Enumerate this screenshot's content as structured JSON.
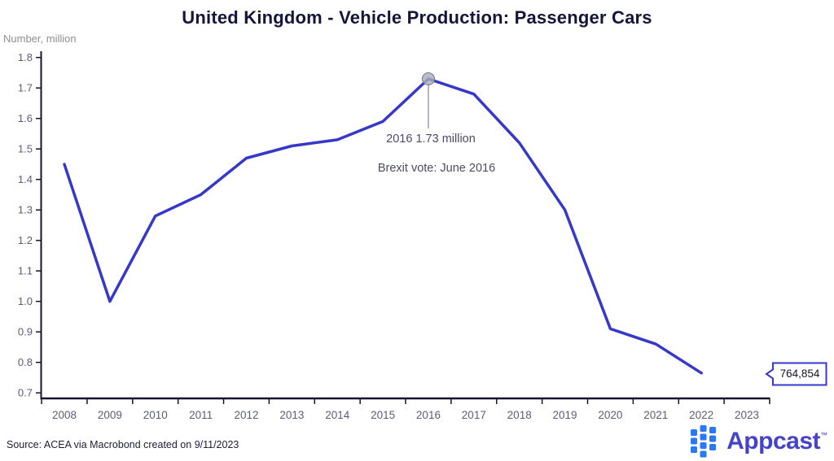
{
  "title": "United Kingdom - Vehicle Production: Passenger Cars",
  "y_axis_label": "Number, million",
  "annotations": {
    "peak_label": "2016 1.73 million",
    "brexit_label": "Brexit vote: June 2016"
  },
  "end_callout": {
    "value": "764,854"
  },
  "source_note": "Source: ACEA via Macrobond created on 9/11/2023",
  "logo": {
    "text": "Appcast",
    "tm": "™",
    "icon_color": "#2a79f2",
    "text_color": "#4543c9"
  },
  "chart_data": {
    "type": "line",
    "title": "United Kingdom - Vehicle Production: Passenger Cars",
    "xlabel": "",
    "ylabel": "Number, million",
    "categories": [
      "2008",
      "2009",
      "2010",
      "2011",
      "2012",
      "2013",
      "2014",
      "2015",
      "2016",
      "2017",
      "2018",
      "2019",
      "2020",
      "2021",
      "2022",
      "2023"
    ],
    "values": [
      1.45,
      1.0,
      1.28,
      1.35,
      1.47,
      1.51,
      1.53,
      1.59,
      1.73,
      1.68,
      1.52,
      1.3,
      0.91,
      0.86,
      0.765
    ],
    "ylim": [
      0.7,
      1.8
    ],
    "y_ticks": [
      "1.8",
      "1.7",
      "1.6",
      "1.5",
      "1.4",
      "1.3",
      "1.2",
      "1.1",
      "1.0",
      "0.9",
      "0.8",
      "0.7"
    ],
    "grid": false,
    "legend": "none",
    "line_color": "#3538c8",
    "peak_annotation": {
      "x": 2016,
      "y": 1.73,
      "text": "2016 1.73 million"
    },
    "note": "Brexit vote: June 2016",
    "last_point_label": "764,854"
  }
}
